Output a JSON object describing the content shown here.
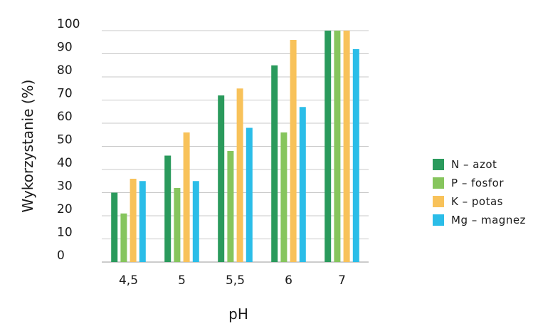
{
  "chart_data": {
    "type": "bar",
    "title": "",
    "xlabel": "pH",
    "ylabel": "Wykorzystanie (%)",
    "categories": [
      "4,5",
      "5",
      "5,5",
      "6",
      "7"
    ],
    "ylim": [
      0,
      100
    ],
    "yticks": [
      0,
      10,
      20,
      30,
      40,
      50,
      60,
      70,
      80,
      90,
      100
    ],
    "grid": true,
    "legend_position": "right",
    "series": [
      {
        "name": "N – azot",
        "color": "#2a9a5c",
        "values": [
          30,
          46,
          72,
          85,
          100
        ]
      },
      {
        "name": "P – fosfor",
        "color": "#86c55d",
        "values": [
          21,
          32,
          48,
          56,
          100
        ]
      },
      {
        "name": "K – potas",
        "color": "#f8c25a",
        "values": [
          36,
          56,
          75,
          96,
          100
        ]
      },
      {
        "name": "Mg – magnez",
        "color": "#2bbde8",
        "values": [
          35,
          35,
          58,
          67,
          92
        ]
      }
    ]
  }
}
